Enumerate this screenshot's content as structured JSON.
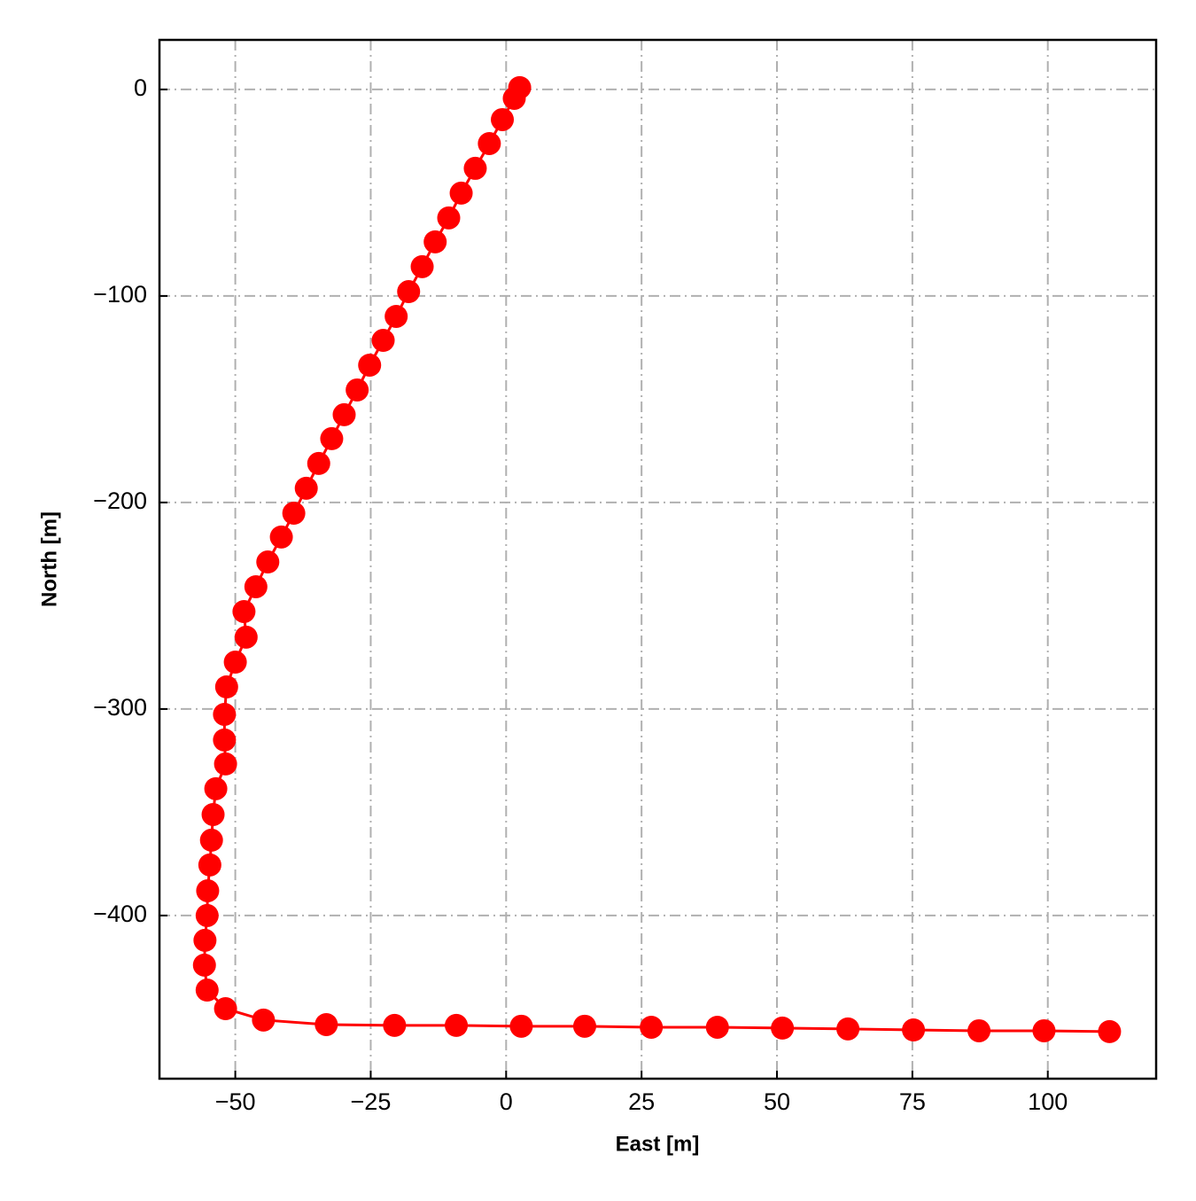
{
  "chart_data": {
    "type": "line",
    "xlabel": "East [m]",
    "ylabel": "North [m]",
    "xlim": [
      -64,
      120
    ],
    "ylim": [
      -479,
      24
    ],
    "xticks": [
      {
        "value": -50,
        "label": "−50"
      },
      {
        "value": -25,
        "label": "−25"
      },
      0,
      25,
      50,
      75,
      100
    ],
    "yticks": [
      0,
      {
        "value": -100,
        "label": "−100"
      },
      {
        "value": -200,
        "label": "−200"
      },
      {
        "value": -300,
        "label": "−300"
      },
      {
        "value": -400,
        "label": "−400"
      }
    ],
    "grid": true,
    "series": [
      {
        "color": "#ff0000",
        "x": [
          2.5,
          1.5,
          -0.7,
          -3.1,
          -5.7,
          -8.3,
          -10.6,
          -13.1,
          -15.5,
          -18.0,
          -20.3,
          -22.7,
          -25.2,
          -27.5,
          -29.9,
          -32.2,
          -34.6,
          -36.9,
          -39.2,
          -41.5,
          -44.0,
          -46.2,
          -48.4,
          -48.0,
          -50.0,
          -51.6,
          -52.0,
          -52.0,
          -51.8,
          -53.6,
          -54.1,
          -54.4,
          -54.7,
          -55.1,
          -55.2,
          -55.6,
          -55.7,
          -55.2,
          -51.8,
          -44.8,
          -33.2,
          -20.6,
          -9.2,
          2.8,
          14.5,
          26.8,
          39.0,
          51.0,
          63.1,
          75.2,
          87.3,
          99.3,
          111.4
        ],
        "values": [
          0.9,
          -4.3,
          -14.6,
          -26.2,
          -38.2,
          -50.2,
          -62.2,
          -73.8,
          -85.8,
          -97.9,
          -109.9,
          -121.5,
          -133.5,
          -145.5,
          -157.5,
          -169.1,
          -181.1,
          -193.1,
          -205.2,
          -216.7,
          -228.8,
          -240.8,
          -252.8,
          -265.2,
          -277.3,
          -289.3,
          -302.6,
          -315.0,
          -326.6,
          -338.6,
          -351.1,
          -363.5,
          -375.5,
          -388.0,
          -400.0,
          -412.0,
          -424.0,
          -436.1,
          -445.1,
          -450.6,
          -452.8,
          -453.2,
          -453.2,
          -453.6,
          -453.6,
          -454.1,
          -454.1,
          -454.5,
          -454.9,
          -455.4,
          -455.8,
          -455.8,
          -456.2
        ]
      }
    ]
  }
}
